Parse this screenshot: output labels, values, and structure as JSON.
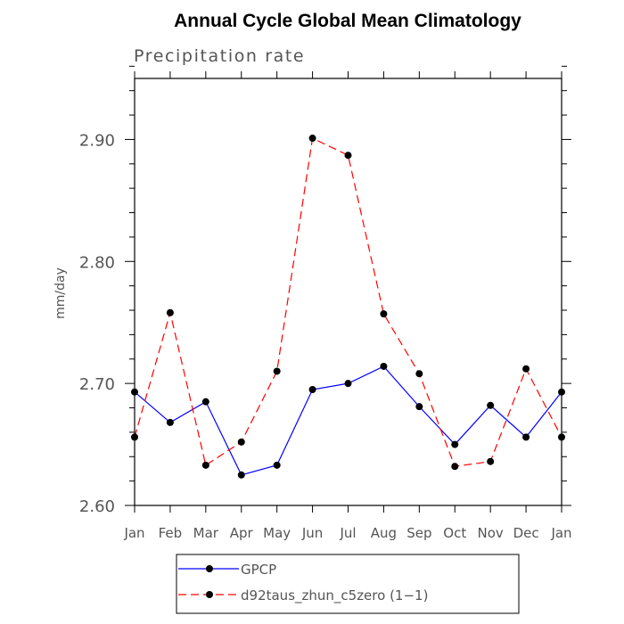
{
  "chart_data": {
    "type": "line",
    "title": "Annual Cycle Global Mean Climatology",
    "subtitle": "Precipitation rate",
    "xlabel": "",
    "ylabel": "mm/day",
    "categories": [
      "Jan",
      "Feb",
      "Mar",
      "Apr",
      "May",
      "Jun",
      "Jul",
      "Aug",
      "Sep",
      "Oct",
      "Nov",
      "Dec",
      "Jan"
    ],
    "ylim": [
      2.6,
      2.95
    ],
    "yticks": [
      2.6,
      2.7,
      2.8,
      2.9
    ],
    "ytick_labels": [
      "2.60",
      "2.70",
      "2.80",
      "2.90"
    ],
    "legend_position": "bottom",
    "series": [
      {
        "name": "GPCP",
        "color": "#0000ff",
        "dash": "solid",
        "values": [
          2.693,
          2.668,
          2.685,
          2.625,
          2.633,
          2.695,
          2.7,
          2.714,
          2.681,
          2.65,
          2.682,
          2.656,
          2.693
        ]
      },
      {
        "name": "d92taus_zhun_c5zero (1−1)",
        "color": "#ff0000",
        "dash": "dashed",
        "values": [
          2.656,
          2.758,
          2.633,
          2.652,
          2.71,
          2.901,
          2.887,
          2.757,
          2.708,
          2.632,
          2.636,
          2.712,
          2.656
        ]
      }
    ]
  }
}
